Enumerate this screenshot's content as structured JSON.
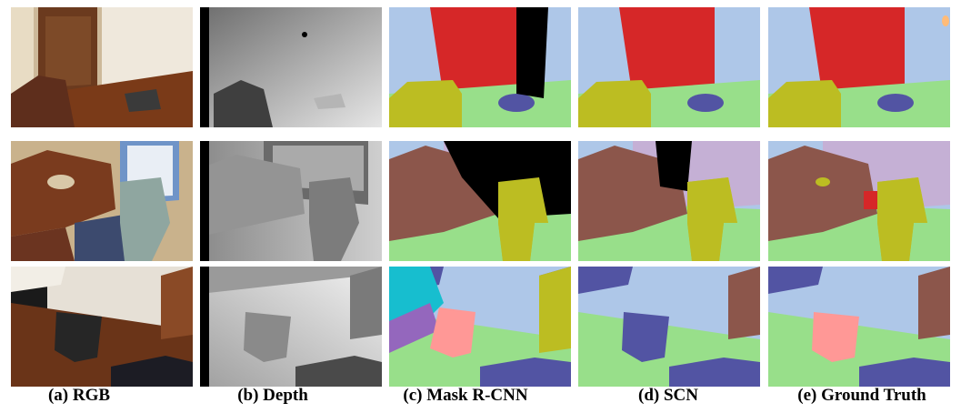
{
  "captions": [
    "(a) RGB",
    "(b) Depth",
    "(c) Mask R-CNN",
    "(d) SCN",
    "(e) Ground Truth"
  ]
}
